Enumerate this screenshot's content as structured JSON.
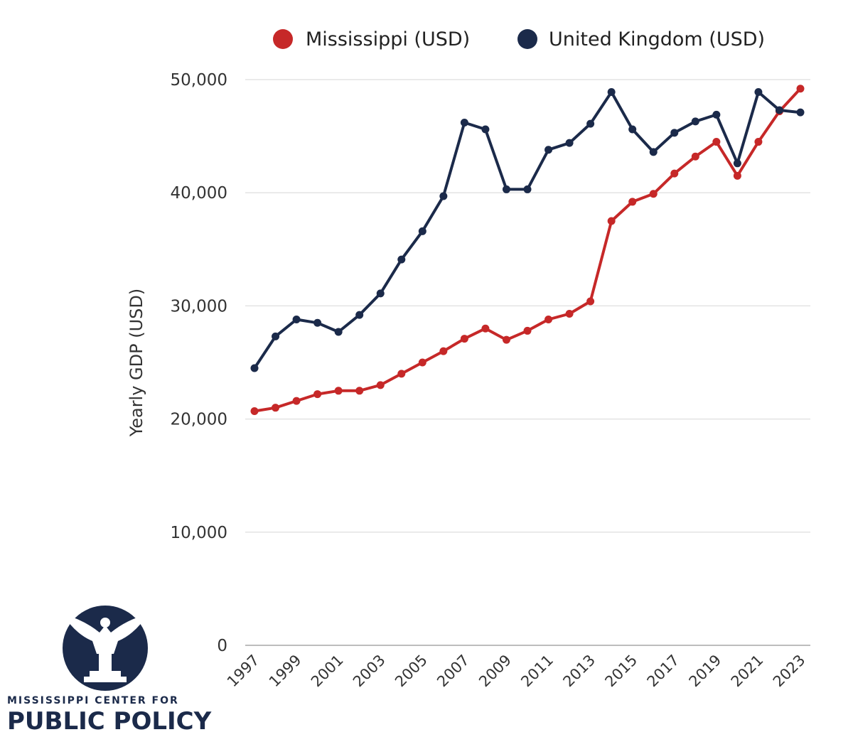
{
  "chart_data": {
    "type": "line",
    "title": "",
    "xlabel": "",
    "ylabel": "Yearly GDP (USD)",
    "ylim": [
      0,
      50000
    ],
    "yticks": [
      0,
      10000,
      20000,
      30000,
      40000,
      50000
    ],
    "ytick_labels": [
      "0",
      "10,000",
      "20,000",
      "30,000",
      "40,000",
      "50,000"
    ],
    "x": [
      1997,
      1998,
      1999,
      2000,
      2001,
      2002,
      2003,
      2004,
      2005,
      2006,
      2007,
      2008,
      2009,
      2010,
      2011,
      2012,
      2013,
      2014,
      2015,
      2016,
      2017,
      2018,
      2019,
      2020,
      2021,
      2022,
      2023
    ],
    "xtick_labels": [
      "1997",
      "1999",
      "2001",
      "2003",
      "2005",
      "2007",
      "2009",
      "2011",
      "2013",
      "2015",
      "2017",
      "2019",
      "2021",
      "2023"
    ],
    "legend_position": "top",
    "grid": true,
    "series": [
      {
        "name": "Mississippi (USD)",
        "color": "#c62828",
        "values": [
          20700,
          21000,
          21600,
          22200,
          22500,
          22500,
          23000,
          24000,
          25000,
          26000,
          27100,
          28000,
          27000,
          27800,
          28800,
          29300,
          30400,
          37500,
          39200,
          39900,
          41700,
          43200,
          44500,
          41500,
          44500,
          47200,
          49200
        ]
      },
      {
        "name": "United Kingdom (USD)",
        "color": "#1b2a4a",
        "values": [
          24500,
          27300,
          28800,
          28500,
          27700,
          29200,
          31100,
          34100,
          36600,
          39700,
          46200,
          45600,
          40300,
          40300,
          43800,
          44400,
          46100,
          48900,
          45600,
          43600,
          45300,
          46300,
          46900,
          42600,
          48900,
          47300,
          47100
        ]
      }
    ]
  },
  "branding": {
    "org_line1": "MISSISSIPPI CENTER FOR",
    "org_line2": "PUBLIC POLICY",
    "logo_icon": "eagle-seal-icon"
  }
}
